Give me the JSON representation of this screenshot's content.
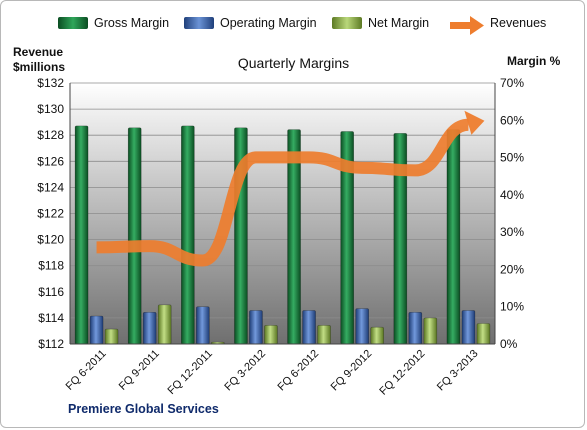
{
  "chart_data": {
    "type": "bar",
    "title": "Quarterly Margins",
    "y_left_label_line1": "Revenue",
    "y_left_label_line2": "$millions",
    "y_right_label": "Margin %",
    "footer": "Premiere Global Services",
    "categories": [
      "FQ 6-2011",
      "FQ 9-2011",
      "FQ 12-2011",
      "FQ 3-2012",
      "FQ 6-2012",
      "FQ 9-2012",
      "FQ 12-2012",
      "FQ 3-2013"
    ],
    "y_left_range": [
      112,
      132
    ],
    "y_left_ticks": [
      "$112",
      "$114",
      "$116",
      "$118",
      "$120",
      "$122",
      "$124",
      "$126",
      "$128",
      "$130",
      "$132"
    ],
    "y_right_range": [
      0,
      70
    ],
    "y_right_ticks": [
      "0%",
      "10%",
      "20%",
      "30%",
      "40%",
      "50%",
      "60%",
      "70%"
    ],
    "grid": true,
    "legend_position": "top",
    "series": [
      {
        "name": "Gross Margin",
        "kind": "bar",
        "axis": "right",
        "color": "#1a7a3c",
        "values": [
          58.5,
          58.0,
          58.5,
          58.0,
          57.5,
          57.0,
          56.5,
          57.5
        ]
      },
      {
        "name": "Operating Margin",
        "kind": "bar",
        "axis": "right",
        "color": "#4a72b8",
        "values": [
          7.5,
          8.5,
          10.0,
          9.0,
          9.0,
          9.5,
          8.5,
          9.0
        ]
      },
      {
        "name": "Net Margin",
        "kind": "bar",
        "axis": "right",
        "color": "#8aae3e",
        "values": [
          4.0,
          10.5,
          0.5,
          5.0,
          5.0,
          4.5,
          7.0,
          5.5
        ]
      },
      {
        "name": "Revenues",
        "kind": "line",
        "axis": "left",
        "color": "#ee7d2e",
        "values": [
          119.4,
          119.5,
          118.4,
          126.3,
          126.3,
          125.5,
          125.3,
          128.8
        ]
      }
    ]
  }
}
